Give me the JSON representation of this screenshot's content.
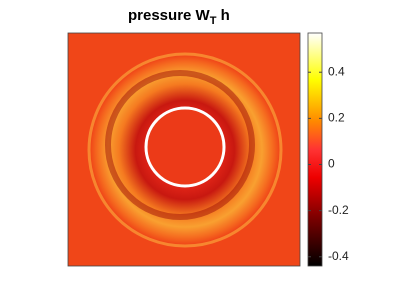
{
  "chart_data": {
    "type": "image",
    "title": {
      "text": "pressure W",
      "subscript": "T",
      "suffix": " h"
    },
    "clim": [
      -0.44,
      0.57
    ],
    "cticks": [
      -0.4,
      -0.2,
      0,
      0.2,
      0.4
    ]
  }
}
